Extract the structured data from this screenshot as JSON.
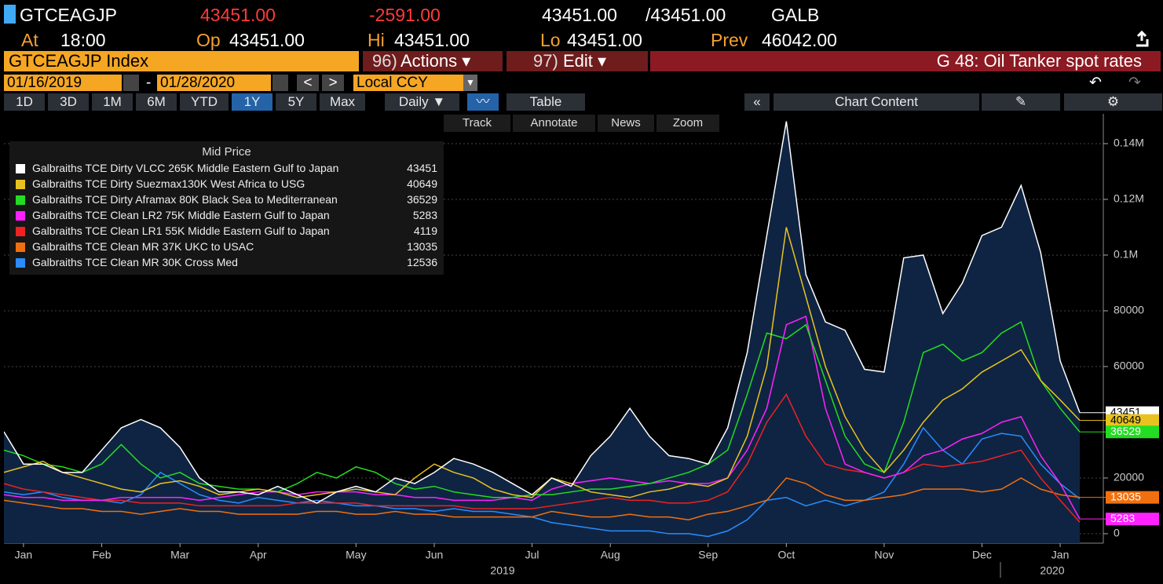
{
  "header": {
    "ticker": "GTCEAGJP",
    "last": "43451.00",
    "change": "-2591.00",
    "bid": "43451.00",
    "ask": "/43451.00",
    "source": "GALB",
    "at_label": "At",
    "time": "18:00",
    "op_label": "Op",
    "op": "43451.00",
    "hi_label": "Hi",
    "hi": "43451.00",
    "lo_label": "Lo",
    "lo": "43451.00",
    "prev_label": "Prev",
    "prev": "46042.00"
  },
  "toolbar": {
    "security": "GTCEAGJP Index",
    "actions_num": "96)",
    "actions": "Actions ▾",
    "edit_num": "97)",
    "edit": "Edit ▾",
    "page_title": "G 48: Oil Tanker spot rates",
    "start_date": "01/16/2019",
    "dash": "-",
    "end_date": "01/28/2020",
    "currency": "Local CCY",
    "ranges": [
      "1D",
      "3D",
      "1M",
      "6M",
      "YTD",
      "1Y",
      "5Y",
      "Max"
    ],
    "selected_range": 5,
    "frequency": "Daily ▼",
    "table": "Table",
    "chart_content": "Chart Content",
    "tools": [
      "Track",
      "Annotate",
      "News",
      "Zoom"
    ]
  },
  "chart_data": {
    "type": "line",
    "legend_title": "Mid Price",
    "area_series": 0,
    "categories": [
      null,
      "Jan",
      null,
      null,
      null,
      "Feb",
      null,
      null,
      null,
      "Mar",
      null,
      null,
      null,
      "Apr",
      null,
      null,
      null,
      null,
      "May",
      null,
      null,
      null,
      "Jun",
      null,
      null,
      null,
      null,
      "Jul",
      null,
      null,
      null,
      "Aug",
      null,
      null,
      null,
      null,
      "Sep",
      null,
      null,
      null,
      "Oct",
      null,
      null,
      null,
      null,
      "Nov",
      null,
      null,
      null,
      null,
      "Dec",
      null,
      null,
      null,
      "Jan",
      null
    ],
    "year_labels": [
      "2019",
      "2020"
    ],
    "ylim": [
      -3400,
      150700
    ],
    "yticks": [
      0,
      20000,
      60000,
      80000,
      {
        "value": 100000,
        "label": "0.1M"
      },
      {
        "value": 120000,
        "label": "0.12M"
      },
      {
        "value": 140000,
        "label": "0.14M"
      }
    ],
    "series": [
      {
        "name": "Galbraiths TCE Dirty VLCC 265K Middle Eastern Gulf to Japan",
        "color": "#ffffff",
        "badge": true,
        "values": [
          36600,
          25000,
          25000,
          22000,
          22000,
          30000,
          38000,
          41000,
          38000,
          31000,
          20000,
          15000,
          15000,
          14000,
          17000,
          14000,
          11000,
          15000,
          17000,
          15000,
          20000,
          18000,
          22000,
          27000,
          25000,
          22000,
          18000,
          14000,
          20000,
          17000,
          28000,
          35000,
          45000,
          35000,
          28000,
          27000,
          25000,
          38000,
          65000,
          107000,
          148000,
          93000,
          76000,
          73000,
          59000,
          58000,
          99000,
          100000,
          79000,
          90000,
          107000,
          110000,
          125000,
          101000,
          62000,
          43451
        ]
      },
      {
        "name": "Galbraiths TCE Dirty Suezmax130K West Africa to USG",
        "color": "#e8c320",
        "badge": true,
        "values": [
          22000,
          24000,
          26000,
          22000,
          20000,
          18000,
          16000,
          15000,
          18000,
          19000,
          17000,
          14000,
          15000,
          16000,
          15000,
          13000,
          14000,
          15000,
          16000,
          15000,
          14000,
          20000,
          25000,
          22000,
          20000,
          16000,
          14000,
          13000,
          20000,
          18000,
          15000,
          14000,
          13000,
          15000,
          16000,
          18000,
          17000,
          20000,
          35000,
          60000,
          110000,
          85000,
          60000,
          42000,
          30000,
          22000,
          30000,
          40000,
          48000,
          52000,
          58000,
          62000,
          66000,
          55000,
          48000,
          40649
        ]
      },
      {
        "name": "Galbraiths TCE Dirty Aframax 80K Black Sea to Mediterranean",
        "color": "#22dd22",
        "badge": true,
        "values": [
          30000,
          28000,
          25000,
          24000,
          22000,
          25000,
          32000,
          25000,
          20000,
          22000,
          18000,
          17000,
          16000,
          16000,
          15000,
          18000,
          22000,
          20000,
          24000,
          22000,
          18000,
          16000,
          17000,
          15000,
          14000,
          13000,
          13000,
          14000,
          14000,
          15000,
          16000,
          16000,
          17000,
          18000,
          20000,
          22000,
          25000,
          30000,
          50000,
          72000,
          70000,
          75000,
          55000,
          35000,
          25000,
          22000,
          40000,
          65000,
          68000,
          62000,
          65000,
          72000,
          76000,
          55000,
          45000,
          36529
        ]
      },
      {
        "name": "Galbraiths TCE Clean LR2 75K Middle Eastern Gulf to Japan",
        "color": "#ff22ff",
        "badge": true,
        "values": [
          14000,
          13000,
          13000,
          12000,
          12000,
          12000,
          13000,
          13000,
          13000,
          13000,
          12000,
          13000,
          14000,
          15000,
          15000,
          14000,
          15000,
          15000,
          15000,
          14000,
          14000,
          13000,
          13000,
          12000,
          12000,
          12000,
          13000,
          12000,
          16000,
          18000,
          19000,
          20000,
          19000,
          18000,
          19000,
          18000,
          18000,
          20000,
          30000,
          45000,
          75000,
          78000,
          45000,
          25000,
          22000,
          20000,
          22000,
          28000,
          30000,
          34000,
          36000,
          40000,
          42000,
          28000,
          18000,
          5283
        ]
      },
      {
        "name": "Galbraiths TCE Clean LR1 55K Middle Eastern Gulf to Japan",
        "color": "#ee2222",
        "badge": false,
        "values": [
          18000,
          16000,
          15000,
          14000,
          13000,
          12000,
          12000,
          11000,
          11000,
          11000,
          10000,
          10000,
          10000,
          10000,
          10000,
          11000,
          11000,
          11000,
          11000,
          10000,
          10000,
          10000,
          10000,
          10000,
          9000,
          9000,
          9000,
          9000,
          10000,
          11000,
          12000,
          13000,
          12000,
          12000,
          11000,
          11000,
          12000,
          15000,
          25000,
          40000,
          50000,
          35000,
          25000,
          23000,
          22000,
          20000,
          22000,
          25000,
          24000,
          25000,
          26000,
          28000,
          30000,
          20000,
          12000,
          4119
        ]
      },
      {
        "name": "Galbraiths TCE Clean MR 37K UKC to USAC",
        "color": "#f07010",
        "badge": true,
        "values": [
          12000,
          11000,
          10000,
          9000,
          9000,
          8000,
          8000,
          7000,
          8000,
          9000,
          8000,
          8000,
          7000,
          7000,
          7000,
          7000,
          8000,
          8000,
          7000,
          7000,
          8000,
          7000,
          7000,
          6000,
          6000,
          6000,
          6000,
          6000,
          8000,
          7000,
          6000,
          6000,
          7000,
          6000,
          6000,
          5000,
          7000,
          8000,
          10000,
          12000,
          20000,
          18000,
          14000,
          12000,
          12000,
          13000,
          14000,
          16000,
          16000,
          16000,
          15000,
          16000,
          20000,
          16000,
          14000,
          13035
        ]
      },
      {
        "name": "Galbraiths TCE Clean MR 30K Cross Med",
        "color": "#2a8cff",
        "badge": false,
        "values": [
          15000,
          14000,
          15000,
          13000,
          12000,
          12000,
          11000,
          14000,
          22000,
          18000,
          14000,
          12000,
          11000,
          13000,
          12000,
          11000,
          12000,
          11000,
          10000,
          10000,
          9000,
          9000,
          8000,
          9000,
          8000,
          8000,
          7000,
          6000,
          4000,
          3000,
          2000,
          1000,
          1000,
          1000,
          0,
          0,
          -1000,
          1000,
          5000,
          12000,
          13000,
          10000,
          12000,
          10000,
          12000,
          15000,
          25000,
          38000,
          30000,
          25000,
          34000,
          36000,
          35000,
          25000,
          18000,
          12536
        ]
      }
    ]
  }
}
